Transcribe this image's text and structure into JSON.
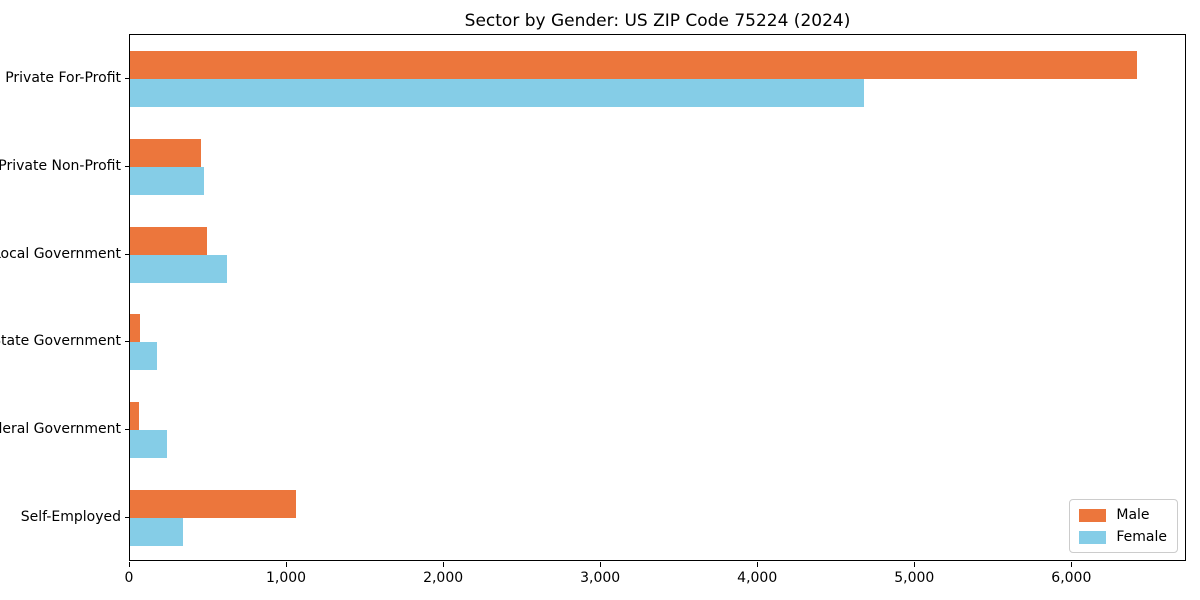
{
  "title": "Sector by Gender: US ZIP Code 75224 (2024)",
  "chart_data": {
    "type": "bar",
    "orientation": "horizontal",
    "title": "Sector by Gender: US ZIP Code 75224 (2024)",
    "categories": [
      "Private For-Profit",
      "Private Non-Profit",
      "Local Government",
      "State Government",
      "Federal Government",
      "Self-Employed"
    ],
    "series": [
      {
        "name": "Male",
        "color": "#ec763c",
        "values": [
          6410,
          455,
          490,
          65,
          55,
          1060
        ]
      },
      {
        "name": "Female",
        "color": "#85cde7",
        "values": [
          4675,
          470,
          615,
          175,
          235,
          340
        ]
      }
    ],
    "xlabel": "",
    "ylabel": "",
    "xlim": [
      0,
      6730
    ],
    "x_ticks": [
      0,
      1000,
      2000,
      3000,
      4000,
      5000,
      6000
    ],
    "x_tick_labels": [
      "0",
      "1,000",
      "2,000",
      "3,000",
      "4,000",
      "5,000",
      "6,000"
    ],
    "grid": false,
    "legend_position": "lower right",
    "colors": {
      "frame": "#000000",
      "legend_border": "#cccccc",
      "background": "#ffffff"
    }
  }
}
